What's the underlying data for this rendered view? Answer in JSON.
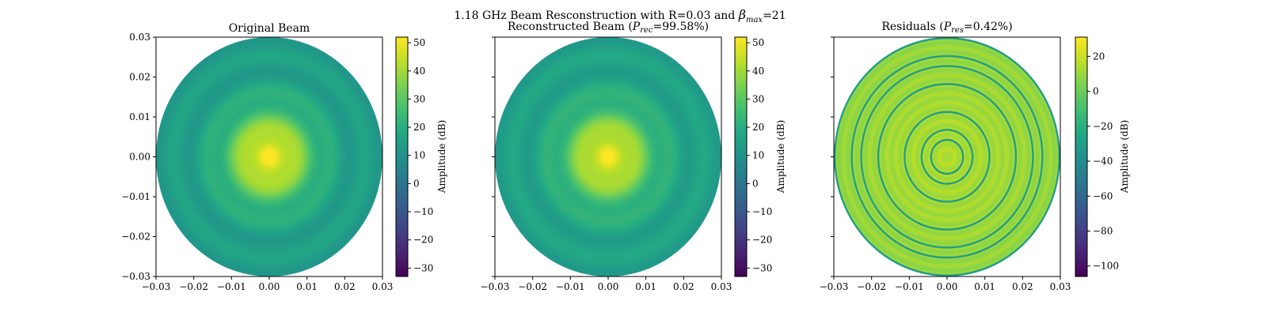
{
  "chart_data": {
    "suptitle": {
      "prefix": "1.18 GHz Beam Resconstruction with R=0.03 and ",
      "beta": "β",
      "beta_sub": "max",
      "suffix": "=21"
    },
    "panels": [
      {
        "type": "heatmap",
        "title": "Original Beam",
        "title_parts": null,
        "xlim": [
          -0.03,
          0.03
        ],
        "ylim": [
          -0.03,
          0.03
        ],
        "xticks": [
          "−0.03",
          "−0.02",
          "−0.01",
          "0.00",
          "0.01",
          "0.02",
          "0.03"
        ],
        "yticks": [
          "0.03",
          "0.02",
          "0.01",
          "0.00",
          "−0.01",
          "−0.02",
          "−0.03"
        ],
        "show_ytick_labels": true,
        "colorbar": {
          "label": "Amplitude (dB)",
          "range": [
            -33,
            52
          ],
          "ticks": [
            "50",
            "40",
            "30",
            "20",
            "10",
            "0",
            "−10",
            "−20",
            "−30"
          ],
          "tick_values": [
            50,
            40,
            30,
            20,
            10,
            0,
            -10,
            -20,
            -30
          ]
        },
        "peak_db": 52,
        "edge_db": 14
      },
      {
        "type": "heatmap",
        "title": "",
        "title_parts": {
          "prefix": "Reconstructed Beam (",
          "sym": "P",
          "sub": "rec",
          "suffix": "=99.58%)"
        },
        "xlim": [
          -0.03,
          0.03
        ],
        "ylim": [
          -0.03,
          0.03
        ],
        "xticks": [
          "−0.03",
          "−0.02",
          "−0.01",
          "0.00",
          "0.01",
          "0.02",
          "0.03"
        ],
        "yticks": [
          "",
          "",
          "",
          "",
          "",
          "",
          ""
        ],
        "show_ytick_labels": false,
        "colorbar": {
          "label": "Amplitude (dB)",
          "range": [
            -33,
            52
          ],
          "ticks": [
            "50",
            "40",
            "30",
            "20",
            "10",
            "0",
            "−10",
            "−20",
            "−30"
          ],
          "tick_values": [
            50,
            40,
            30,
            20,
            10,
            0,
            -10,
            -20,
            -30
          ]
        },
        "peak_db": 51,
        "edge_db": 15
      },
      {
        "type": "heatmap",
        "title": "",
        "title_parts": {
          "prefix": "Residuals (",
          "sym": "P",
          "sub": "res",
          "suffix": "=0.42%)"
        },
        "xlim": [
          -0.03,
          0.03
        ],
        "ylim": [
          -0.03,
          0.03
        ],
        "xticks": [
          "−0.03",
          "−0.02",
          "−0.01",
          "0.00",
          "0.01",
          "0.02",
          "0.03"
        ],
        "yticks": [
          "",
          "",
          "",
          "",
          "",
          "",
          ""
        ],
        "show_ytick_labels": false,
        "colorbar": {
          "label": "Amplitude (dB)",
          "range": [
            -106,
            31
          ],
          "ticks": [
            "20",
            "0",
            "−20",
            "−40",
            "−60",
            "−80",
            "−100"
          ],
          "tick_values": [
            20,
            0,
            -20,
            -40,
            -60,
            -80,
            -100
          ]
        },
        "peak_db": 15,
        "edge_db": 5
      }
    ]
  }
}
